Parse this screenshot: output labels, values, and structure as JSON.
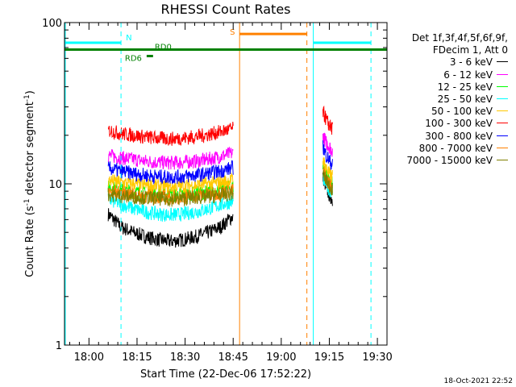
{
  "chart_data": {
    "type": "line",
    "title": "RHESSI Count Rates",
    "xlabel": "Start Time (22-Dec-06 17:52:22)",
    "ylabel_main": "Count Rate (s",
    "ylabel_sup": "-1",
    "ylabel_mid": " detector segment",
    "ylabel_close": ")",
    "x_scale": "time (minutes of day)",
    "xlim": [
      "17:52:22",
      "19:33:00"
    ],
    "x_ticks": [
      "18:00",
      "18:15",
      "18:30",
      "18:45",
      "19:00",
      "19:15",
      "19:30"
    ],
    "y_scale": "log",
    "ylim": [
      1,
      100
    ],
    "y_ticks": [
      "1",
      "10",
      "100"
    ],
    "grid": false,
    "legend_placement": "right, outside plot",
    "legend_header": [
      "Det 1f,3f,4f,5f,6f,9f,",
      "FDecim 1, Att 0"
    ],
    "series": [
      {
        "name": "3 - 6 keV",
        "color": "#000000",
        "segments": [
          {
            "start": "18:06",
            "end": "18:45",
            "values": [
              6.5,
              5.4,
              5.0,
              4.7,
              4.5,
              4.4,
              4.5,
              4.7,
              5.0,
              5.4,
              6.3
            ]
          },
          {
            "start": "19:13",
            "end": "19:16",
            "values": [
              11,
              9.5,
              8.5,
              8
            ]
          }
        ]
      },
      {
        "name": "6 - 12 keV",
        "color": "#ff00ff",
        "segments": [
          {
            "start": "18:06",
            "end": "18:45",
            "values": [
              15,
              14.5,
              14.2,
              13.8,
              13.6,
              13.5,
              13.6,
              13.8,
              14.2,
              14.8,
              15.5
            ]
          },
          {
            "start": "19:13",
            "end": "19:16",
            "values": [
              20,
              18,
              17,
              16
            ]
          }
        ]
      },
      {
        "name": "12 - 25 keV",
        "color": "#00ff00",
        "segments": [
          {
            "start": "18:06",
            "end": "18:45",
            "values": [
              9.5,
              9.2,
              8.9,
              8.7,
              8.6,
              8.5,
              8.6,
              8.7,
              8.9,
              9.2,
              9.6
            ]
          },
          {
            "start": "19:13",
            "end": "19:16",
            "values": [
              13,
              11.5,
              10.5,
              10
            ]
          }
        ]
      },
      {
        "name": "25 - 50 keV",
        "color": "#00ffff",
        "segments": [
          {
            "start": "18:06",
            "end": "18:45",
            "values": [
              8.0,
              7.5,
              7.0,
              6.7,
              6.5,
              6.4,
              6.5,
              6.7,
              7.0,
              7.4,
              7.8
            ]
          },
          {
            "start": "19:13",
            "end": "19:16",
            "values": [
              11,
              10,
              9.2,
              8.8
            ]
          }
        ]
      },
      {
        "name": "50 - 100 keV",
        "color": "#ffc800",
        "segments": [
          {
            "start": "18:06",
            "end": "18:45",
            "values": [
              10.5,
              10.2,
              10.0,
              9.8,
              9.7,
              9.6,
              9.7,
              9.8,
              10.0,
              10.2,
              10.6
            ]
          },
          {
            "start": "19:13",
            "end": "19:16",
            "values": [
              14,
              12.5,
              11.5,
              11
            ]
          }
        ]
      },
      {
        "name": "100 - 300 keV",
        "color": "#ff0000",
        "segments": [
          {
            "start": "18:06",
            "end": "18:45",
            "values": [
              21.5,
              20.5,
              20.0,
              19.5,
              19.2,
              19.0,
              19.2,
              19.6,
              20.2,
              21.0,
              22.0
            ]
          },
          {
            "start": "19:13",
            "end": "19:16",
            "values": [
              28,
              25,
              23,
              22
            ]
          }
        ]
      },
      {
        "name": "300 - 800 keV",
        "color": "#0000ff",
        "segments": [
          {
            "start": "18:06",
            "end": "18:45",
            "values": [
              12.5,
              12.0,
              11.6,
              11.3,
              11.1,
              11.0,
              11.1,
              11.3,
              11.6,
              12.0,
              12.6
            ]
          },
          {
            "start": "19:13",
            "end": "19:16",
            "values": [
              17,
              15,
              14,
              13
            ]
          }
        ]
      },
      {
        "name": "800 - 7000 keV",
        "color": "#ff8000",
        "segments": [
          {
            "start": "18:06",
            "end": "18:45",
            "values": [
              9.0,
              8.8,
              8.6,
              8.4,
              8.3,
              8.2,
              8.3,
              8.4,
              8.6,
              8.8,
              9.1
            ]
          },
          {
            "start": "19:13",
            "end": "19:16",
            "values": [
              12,
              10.8,
              10,
              9.5
            ]
          }
        ]
      },
      {
        "name": "7000 - 15000 keV",
        "color": "#808000",
        "segments": [
          {
            "start": "18:06",
            "end": "18:45",
            "values": [
              8.6,
              8.4,
              8.3,
              8.2,
              8.1,
              8.0,
              8.1,
              8.2,
              8.3,
              8.5,
              8.7
            ]
          },
          {
            "start": "19:13",
            "end": "19:16",
            "values": [
              11.5,
              10.5,
              9.7,
              9.2
            ]
          }
        ]
      }
    ],
    "annotations": [
      {
        "label": "N",
        "type": "night",
        "color": "#00ffff",
        "level": 75,
        "solid": [
          [
            "17:52:22",
            "18:10"
          ],
          [
            "19:10",
            "19:28"
          ]
        ],
        "dashed": [
          "18:10",
          "19:28"
        ]
      },
      {
        "label": "S",
        "type": "saa",
        "color": "#ff8000",
        "level": 85,
        "solid": [
          [
            "18:47",
            "19:08"
          ]
        ],
        "dashed": [
          "19:08"
        ],
        "solid_lines": [
          "18:47"
        ]
      },
      {
        "label": "RD0",
        "type": "decimation",
        "color": "#008000",
        "level": 68,
        "solid": [
          [
            "17:52:22",
            "19:33:00"
          ]
        ]
      },
      {
        "label": "RD6",
        "type": "decimation",
        "color": "#008000",
        "level": 62,
        "solid": [
          [
            "18:18",
            "18:20"
          ]
        ]
      }
    ],
    "timestamp": "18-Oct-2021 22:52"
  }
}
